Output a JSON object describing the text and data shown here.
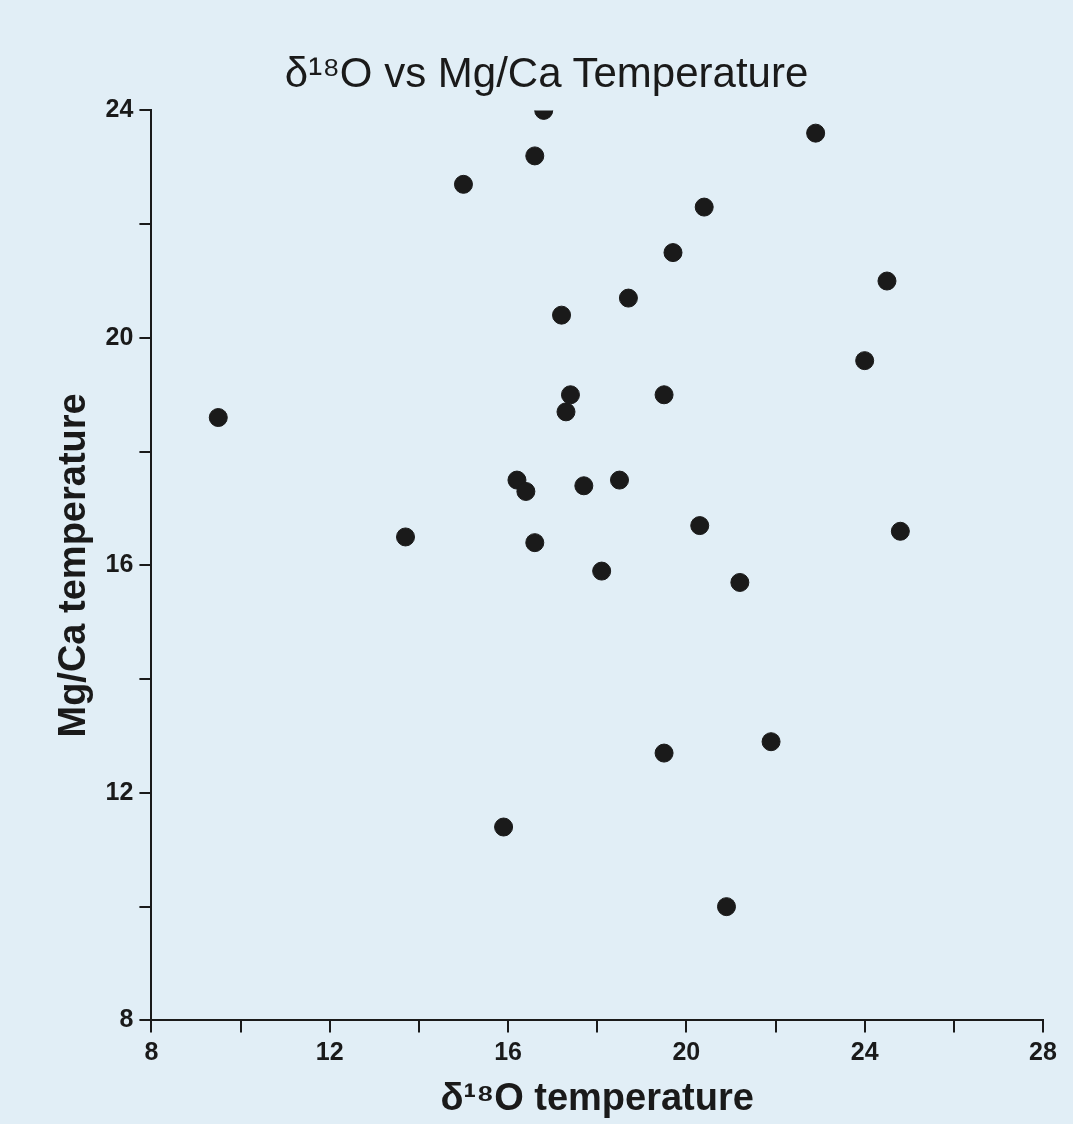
{
  "chart_data": {
    "type": "scatter",
    "title": "δ¹⁸O vs Mg/Ca Temperature",
    "xlabel": "δ¹⁸O temperature",
    "ylabel": "Mg/Ca temperature",
    "x": [
      9.5,
      13.7,
      15.0,
      15.9,
      16.2,
      16.4,
      16.6,
      16.6,
      16.8,
      17.2,
      17.3,
      17.4,
      17.7,
      18.1,
      18.5,
      18.7,
      19.5,
      19.5,
      19.7,
      20.3,
      20.4,
      20.9,
      21.2,
      21.9,
      22.9,
      24.0,
      24.5,
      24.8
    ],
    "series": [
      {
        "color": "#1a1a1a",
        "values": [
          18.6,
          16.5,
          22.7,
          11.4,
          17.5,
          17.3,
          16.4,
          23.2,
          24.0,
          20.4,
          18.7,
          19.0,
          17.4,
          15.9,
          17.5,
          20.7,
          12.7,
          19.0,
          21.5,
          16.7,
          22.3,
          10.0,
          15.7,
          12.9,
          23.6,
          19.6,
          21.0,
          16.6
        ]
      }
    ],
    "xlim": [
      8,
      28
    ],
    "ylim": [
      8,
      24
    ],
    "xticks": [
      8,
      {
        "value": 10,
        "label": null
      },
      12,
      {
        "value": 14,
        "label": null
      },
      16,
      {
        "value": 18,
        "label": null
      },
      20,
      {
        "value": 22,
        "label": null
      },
      24,
      {
        "value": 26,
        "label": null
      },
      28
    ],
    "yticks": [
      8,
      {
        "value": 10,
        "label": null
      },
      12,
      {
        "value": 14,
        "label": null
      },
      16,
      {
        "value": 18,
        "label": null
      },
      20,
      {
        "value": 22,
        "label": null
      },
      24
    ],
    "grid": false,
    "legend": false,
    "marker": "circle"
  }
}
